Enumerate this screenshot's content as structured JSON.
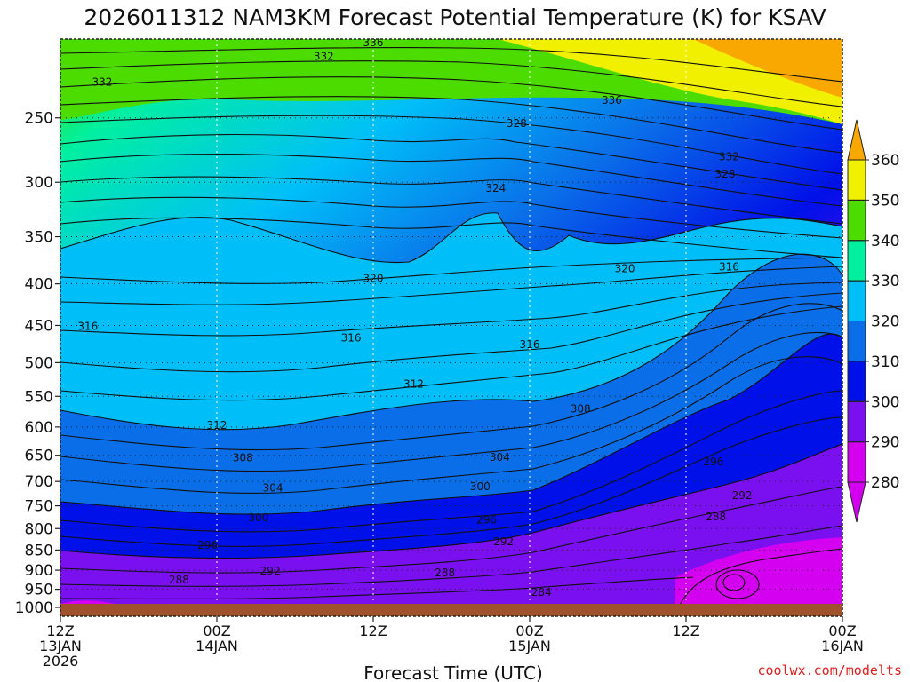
{
  "chart_data": {
    "type": "heatmap",
    "title": "2026011312 NAM3KM Forecast Potential Temperature (K) for KSAV",
    "xlabel": "Forecast Time (UTC)",
    "ylabel": "",
    "credit": "coolwx.com/modelts",
    "x_ticks": [
      {
        "hours": 0,
        "lines": [
          "12Z",
          "13JAN",
          "2026"
        ]
      },
      {
        "hours": 12,
        "lines": [
          "00Z",
          "14JAN"
        ]
      },
      {
        "hours": 24,
        "lines": [
          "12Z"
        ]
      },
      {
        "hours": 36,
        "lines": [
          "00Z",
          "15JAN"
        ]
      },
      {
        "hours": 48,
        "lines": [
          "12Z"
        ]
      },
      {
        "hours": 60,
        "lines": [
          "00Z",
          "16JAN"
        ]
      }
    ],
    "x_range_hours": [
      0,
      60
    ],
    "y_range_hPa": [
      1000,
      200
    ],
    "y_ticks": [
      250,
      300,
      350,
      400,
      450,
      500,
      550,
      600,
      650,
      700,
      750,
      800,
      850,
      900,
      950,
      1000
    ],
    "colorbar": {
      "levels": [
        280,
        290,
        300,
        310,
        320,
        330,
        340,
        350,
        360
      ],
      "colors": [
        "#d400f0",
        "#7a0ff0",
        "#0010e8",
        "#0a6ee8",
        "#00bff8",
        "#00f0a0",
        "#4cdc00",
        "#f0f000",
        "#f8a800"
      ],
      "extend": "both"
    },
    "contour_interval_K": 2,
    "contour_labels": [
      {
        "text": "336",
        "h": 24.0,
        "p": 202
      },
      {
        "text": "332",
        "h": 20.2,
        "p": 210
      },
      {
        "text": "332",
        "h": 3.2,
        "p": 226
      },
      {
        "text": "336",
        "h": 42.3,
        "p": 238
      },
      {
        "text": "328",
        "h": 35.0,
        "p": 254
      },
      {
        "text": "332",
        "h": 51.3,
        "p": 279
      },
      {
        "text": "328",
        "h": 51.0,
        "p": 293
      },
      {
        "text": "324",
        "h": 33.4,
        "p": 305
      },
      {
        "text": "320",
        "h": 24.0,
        "p": 394
      },
      {
        "text": "320",
        "h": 43.3,
        "p": 383
      },
      {
        "text": "316",
        "h": 51.3,
        "p": 381
      },
      {
        "text": "316",
        "h": 2.1,
        "p": 451
      },
      {
        "text": "316",
        "h": 22.3,
        "p": 466
      },
      {
        "text": "316",
        "h": 36.0,
        "p": 475
      },
      {
        "text": "312",
        "h": 27.1,
        "p": 531
      },
      {
        "text": "308",
        "h": 39.9,
        "p": 570
      },
      {
        "text": "312",
        "h": 12.0,
        "p": 597
      },
      {
        "text": "308",
        "h": 14.0,
        "p": 655
      },
      {
        "text": "304",
        "h": 33.7,
        "p": 654
      },
      {
        "text": "304",
        "h": 16.3,
        "p": 713
      },
      {
        "text": "300",
        "h": 32.2,
        "p": 710
      },
      {
        "text": "300",
        "h": 15.2,
        "p": 776
      },
      {
        "text": "296",
        "h": 32.7,
        "p": 781
      },
      {
        "text": "296",
        "h": 50.1,
        "p": 662
      },
      {
        "text": "292",
        "h": 52.3,
        "p": 728
      },
      {
        "text": "288",
        "h": 50.3,
        "p": 774
      },
      {
        "text": "292",
        "h": 34.0,
        "p": 830
      },
      {
        "text": "296",
        "h": 11.3,
        "p": 839
      },
      {
        "text": "292",
        "h": 16.1,
        "p": 902
      },
      {
        "text": "288",
        "h": 29.5,
        "p": 907
      },
      {
        "text": "288",
        "h": 9.1,
        "p": 925
      },
      {
        "text": "284",
        "h": 36.9,
        "p": 958
      }
    ]
  }
}
